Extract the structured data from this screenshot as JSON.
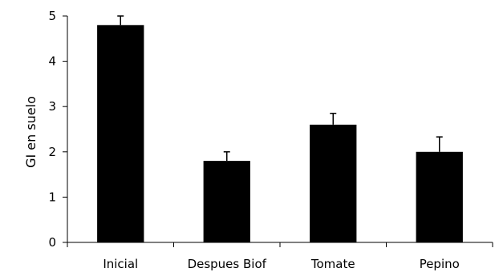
{
  "chart_data": {
    "type": "bar",
    "categories": [
      "Inicial",
      "Despues Biof",
      "Tomate",
      "Pepino"
    ],
    "values": [
      4.8,
      1.8,
      2.6,
      2.0
    ],
    "error_bars": [
      0.2,
      0.2,
      0.25,
      0.33
    ],
    "ylabel": "GI en suelo",
    "xlabel": "",
    "ylim": [
      0,
      5
    ],
    "yticks": [
      0,
      1,
      2,
      3,
      4,
      5
    ],
    "grid": false,
    "legend": "none",
    "bar_color": "#000000",
    "axis_color": "#000000"
  }
}
